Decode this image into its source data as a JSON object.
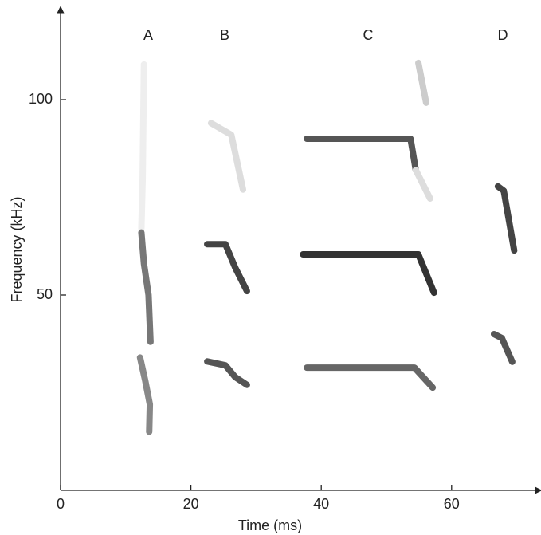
{
  "chart_data": {
    "type": "spectrogram",
    "x_label": "Time (ms)",
    "y_label": "Frequency (kHz)",
    "annotations": [
      "A",
      "B",
      "C",
      "D"
    ],
    "xlim": [
      0,
      74
    ],
    "xticks": [
      0,
      20,
      40,
      60
    ],
    "ylim": [
      0,
      122
    ],
    "yticks": [
      50,
      100
    ],
    "series": [
      {
        "color": "#eeeeee",
        "x": [
          12.8,
          12.6,
          12.4
        ],
        "values": [
          109,
          80,
          67
        ]
      },
      {
        "color": "#777777",
        "x": [
          12.4,
          12.8,
          13.5,
          13.8
        ],
        "values": [
          66,
          58,
          50,
          38
        ]
      },
      {
        "color": "#888888",
        "x": [
          12.2,
          13,
          13.7,
          13.6
        ],
        "values": [
          34,
          28,
          22,
          15
        ]
      },
      {
        "color": "#dddddd",
        "x": [
          23.1,
          26.2,
          28
        ],
        "values": [
          94,
          91,
          77
        ]
      },
      {
        "color": "#444444",
        "x": [
          22.5,
          25.3,
          26.8,
          28.6
        ],
        "values": [
          63,
          63,
          57,
          51
        ]
      },
      {
        "color": "#555555",
        "x": [
          22.5,
          25.3,
          26.8,
          28.6
        ],
        "values": [
          33,
          32,
          29,
          27
        ]
      },
      {
        "color": "#cccccc",
        "x": [
          54.9,
          56.1
        ],
        "values": [
          109.4,
          99.2
        ]
      },
      {
        "color": "#555555",
        "x": [
          37.8,
          53.7,
          54.5
        ],
        "values": [
          90,
          90,
          82
        ]
      },
      {
        "color": "#dddddd",
        "x": [
          54.5,
          56.7
        ],
        "values": [
          82,
          74.7
        ]
      },
      {
        "color": "#333333",
        "x": [
          37.2,
          54.9,
          57.3
        ],
        "values": [
          60.4,
          60.4,
          50.6
        ]
      },
      {
        "color": "#666666",
        "x": [
          37.8,
          54.3,
          57.1
        ],
        "values": [
          31.4,
          31.4,
          26.3
        ]
      },
      {
        "color": "#444444",
        "x": [
          67.1,
          68,
          69.6
        ],
        "values": [
          77.8,
          76.7,
          61.4
        ]
      },
      {
        "color": "#555555",
        "x": [
          66.5,
          67.7,
          69.3
        ],
        "values": [
          40,
          39,
          32.9
        ]
      }
    ]
  }
}
